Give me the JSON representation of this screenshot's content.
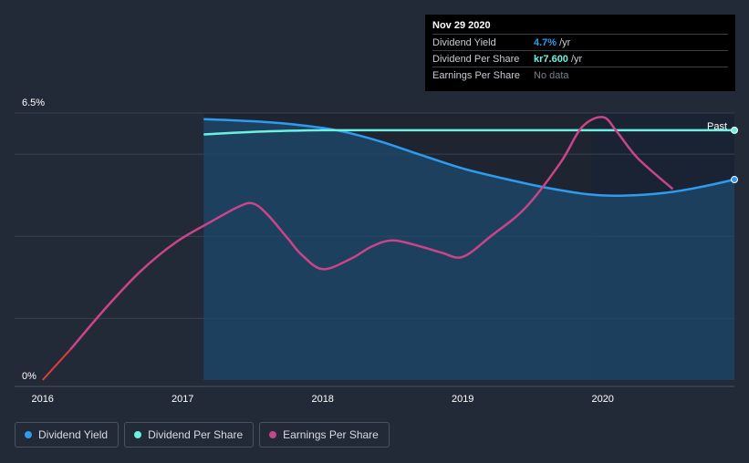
{
  "tooltip": {
    "date": "Nov 29 2020",
    "rows": [
      {
        "label": "Dividend Yield",
        "value": "4.7%",
        "unit": "/yr",
        "color": "#2d9cf0"
      },
      {
        "label": "Dividend Per Share",
        "value": "kr7.600",
        "unit": "/yr",
        "color": "#6ef0e0"
      },
      {
        "label": "Earnings Per Share",
        "value": "No data",
        "unit": "",
        "color": "#7c8089"
      }
    ]
  },
  "legend": [
    {
      "label": "Dividend Yield",
      "color": "#2d9cf0"
    },
    {
      "label": "Dividend Per Share",
      "color": "#6ef0e0"
    },
    {
      "label": "Earnings Per Share",
      "color": "#c9448a"
    }
  ],
  "chart_data": {
    "type": "line",
    "title": "",
    "xlabel": "",
    "ylabel": "",
    "x_ticks": [
      "2016",
      "2017",
      "2018",
      "2019",
      "2020"
    ],
    "x_tick_values": [
      2016,
      2017,
      2018,
      2019,
      2020
    ],
    "xlim": [
      2015.8,
      2020.94
    ],
    "y_ticks": [
      "0%",
      "6.5%"
    ],
    "ylim": [
      0,
      6.5
    ],
    "past_label": "Past",
    "past_start_x": 2019.92,
    "area_start_x": 2017.15,
    "series": [
      {
        "name": "Dividend Yield",
        "color": "#2d9cf0",
        "fill": true,
        "x": [
          2017.15,
          2017.5,
          2017.8,
          2018.1,
          2018.4,
          2018.7,
          2019.0,
          2019.3,
          2019.6,
          2019.9,
          2020.15,
          2020.45,
          2020.7,
          2020.94
        ],
        "values": [
          6.35,
          6.3,
          6.22,
          6.08,
          5.82,
          5.48,
          5.15,
          4.9,
          4.68,
          4.52,
          4.49,
          4.56,
          4.7,
          4.88
        ]
      },
      {
        "name": "Dividend Per Share",
        "color": "#6ef0e0",
        "fill": false,
        "x": [
          2017.15,
          2017.5,
          2017.8,
          2018.0,
          2018.5,
          2019.0,
          2019.5,
          2020.0,
          2020.5,
          2020.94
        ],
        "values": [
          5.98,
          6.04,
          6.07,
          6.08,
          6.08,
          6.08,
          6.08,
          6.08,
          6.08,
          6.08
        ]
      },
      {
        "name": "Earnings Per Share",
        "color": "#c9448a",
        "fill": false,
        "x": [
          2016.0,
          2016.2,
          2016.45,
          2016.7,
          2016.95,
          2017.2,
          2017.4,
          2017.5,
          2017.6,
          2017.75,
          2017.85,
          2018.0,
          2018.2,
          2018.35,
          2018.5,
          2018.7,
          2018.85,
          2019.0,
          2019.2,
          2019.45,
          2019.7,
          2019.85,
          2020.0,
          2020.1,
          2020.25,
          2020.5
        ],
        "values": [
          0,
          0.75,
          1.75,
          2.65,
          3.35,
          3.85,
          4.22,
          4.3,
          4.05,
          3.45,
          3.05,
          2.7,
          2.95,
          3.25,
          3.4,
          3.25,
          3.1,
          3.0,
          3.5,
          4.2,
          5.3,
          6.15,
          6.4,
          6.05,
          5.4,
          4.65
        ]
      }
    ]
  }
}
